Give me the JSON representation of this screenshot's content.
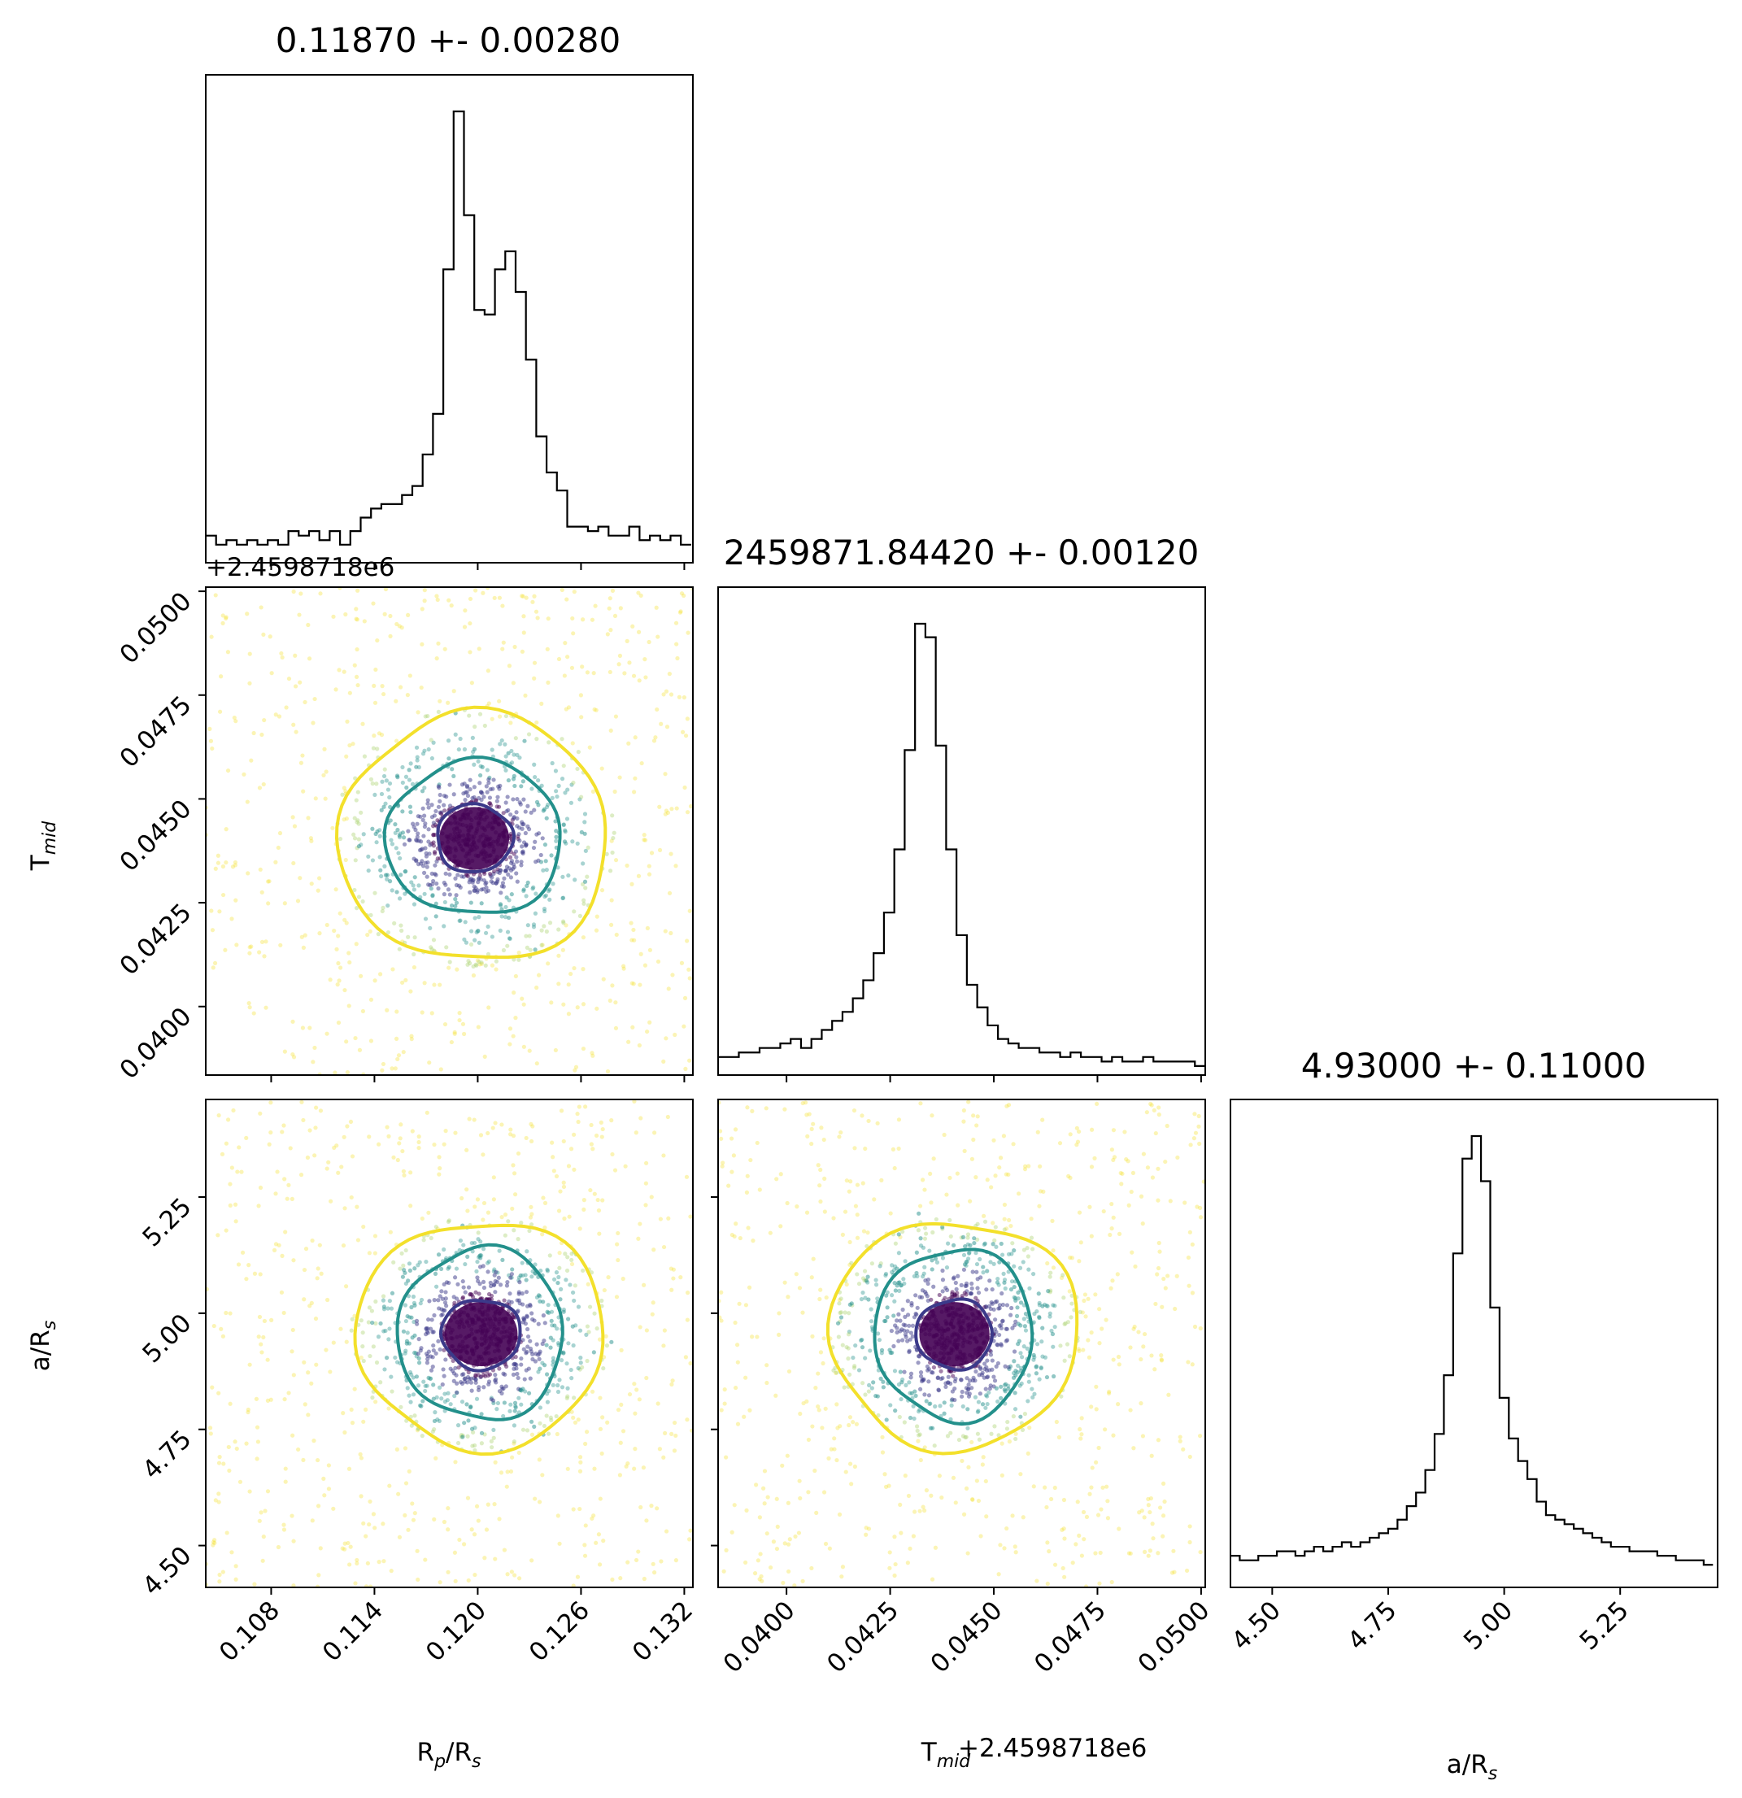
{
  "chart_data": [
    {
      "type": "histogram",
      "panel": "Rp/Rs marginal",
      "title": "0.11870 +- 0.00280",
      "x_range": [
        0.1042,
        0.1325
      ],
      "x_ticks": [
        "0.108",
        "0.114",
        "0.120",
        "0.126",
        "0.132"
      ],
      "bins_x": [
        0.1042,
        0.1048,
        0.1054,
        0.106,
        0.1066,
        0.1072,
        0.1078,
        0.1084,
        0.109,
        0.1096,
        0.1102,
        0.1108,
        0.1114,
        0.112,
        0.1126,
        0.1132,
        0.1138,
        0.1144,
        0.115,
        0.1156,
        0.1162,
        0.1168,
        0.1174,
        0.118,
        0.1186,
        0.1192,
        0.1198,
        0.1204,
        0.121,
        0.1216,
        0.1222,
        0.1228,
        0.1234,
        0.124,
        0.1246,
        0.1252,
        0.1258,
        0.1264,
        0.127,
        0.1276,
        0.1282,
        0.1288,
        0.1294,
        0.13,
        0.1306,
        0.1312,
        0.1318
      ],
      "counts": [
        0.06,
        0.04,
        0.05,
        0.04,
        0.05,
        0.04,
        0.05,
        0.04,
        0.07,
        0.06,
        0.07,
        0.05,
        0.07,
        0.04,
        0.07,
        0.1,
        0.12,
        0.13,
        0.13,
        0.15,
        0.17,
        0.24,
        0.33,
        0.65,
        1.0,
        0.77,
        0.56,
        0.55,
        0.65,
        0.69,
        0.6,
        0.45,
        0.28,
        0.2,
        0.16,
        0.08,
        0.08,
        0.07,
        0.08,
        0.06,
        0.06,
        0.08,
        0.05,
        0.06,
        0.05,
        0.06,
        0.04
      ]
    },
    {
      "type": "histogram",
      "panel": "Tmid marginal",
      "title": "2459871.84420 +- 0.00120",
      "x_range": [
        0.03835,
        0.0501
      ],
      "x_ticks": [
        "0.0400",
        "0.0425",
        "0.0450",
        "0.0475",
        "0.0500"
      ],
      "bins_x": [
        0.03835,
        0.0386,
        0.03885,
        0.0391,
        0.03935,
        0.0396,
        0.03985,
        0.0401,
        0.04035,
        0.0406,
        0.04085,
        0.0411,
        0.04135,
        0.0416,
        0.04185,
        0.0421,
        0.04235,
        0.0426,
        0.04285,
        0.0431,
        0.04335,
        0.0436,
        0.04385,
        0.0441,
        0.04435,
        0.0446,
        0.04485,
        0.0451,
        0.04535,
        0.0456,
        0.04585,
        0.0461,
        0.04635,
        0.0466,
        0.04685,
        0.0471,
        0.04735,
        0.0476,
        0.04785,
        0.0481,
        0.04835,
        0.0486,
        0.04885,
        0.0491,
        0.04935,
        0.0496,
        0.04985
      ],
      "counts": [
        0.04,
        0.04,
        0.05,
        0.05,
        0.06,
        0.06,
        0.07,
        0.08,
        0.06,
        0.08,
        0.1,
        0.12,
        0.14,
        0.17,
        0.21,
        0.27,
        0.36,
        0.5,
        0.72,
        1.0,
        0.97,
        0.73,
        0.5,
        0.31,
        0.2,
        0.15,
        0.11,
        0.08,
        0.07,
        0.06,
        0.06,
        0.05,
        0.05,
        0.04,
        0.05,
        0.04,
        0.04,
        0.03,
        0.04,
        0.03,
        0.03,
        0.04,
        0.03,
        0.03,
        0.03,
        0.03,
        0.02
      ]
    },
    {
      "type": "histogram",
      "panel": "a/Rs marginal",
      "title": "4.93000 +- 0.11000",
      "x_range": [
        4.41,
        5.46
      ],
      "x_ticks": [
        "4.50",
        "4.75",
        "5.00",
        "5.25"
      ],
      "bins_x": [
        4.41,
        4.43,
        4.45,
        4.47,
        4.49,
        4.51,
        4.53,
        4.55,
        4.57,
        4.59,
        4.61,
        4.63,
        4.65,
        4.67,
        4.69,
        4.71,
        4.73,
        4.75,
        4.77,
        4.79,
        4.81,
        4.83,
        4.85,
        4.87,
        4.89,
        4.91,
        4.93,
        4.95,
        4.97,
        4.99,
        5.01,
        5.03,
        5.05,
        5.07,
        5.09,
        5.11,
        5.13,
        5.15,
        5.17,
        5.19,
        5.21,
        5.23,
        5.25,
        5.27,
        5.29,
        5.31,
        5.33,
        5.35,
        5.37,
        5.39,
        5.41,
        5.43
      ],
      "counts": [
        0.07,
        0.06,
        0.06,
        0.07,
        0.07,
        0.08,
        0.08,
        0.07,
        0.08,
        0.09,
        0.08,
        0.09,
        0.1,
        0.09,
        0.1,
        0.11,
        0.12,
        0.13,
        0.15,
        0.18,
        0.21,
        0.26,
        0.34,
        0.47,
        0.74,
        0.95,
        1.0,
        0.9,
        0.62,
        0.42,
        0.33,
        0.28,
        0.24,
        0.19,
        0.16,
        0.15,
        0.14,
        0.13,
        0.12,
        0.11,
        0.1,
        0.09,
        0.09,
        0.08,
        0.08,
        0.08,
        0.07,
        0.07,
        0.06,
        0.06,
        0.06,
        0.05
      ]
    },
    {
      "type": "scatter",
      "panel": "Tmid vs Rp/Rs",
      "x_range": [
        0.1042,
        0.1325
      ],
      "y_range": [
        0.03835,
        0.0501
      ],
      "center": [
        0.1198,
        0.04405
      ],
      "contours": [
        {
          "level": "inner",
          "color": "#3b3a8a",
          "rx": 0.0022,
          "ry": 0.00082
        },
        {
          "level": "middle",
          "color": "#23908b",
          "rx": 0.0051,
          "ry": 0.00186
        },
        {
          "level": "outer",
          "color": "#f3e02b",
          "rx": 0.0078,
          "ry": 0.003
        }
      ]
    },
    {
      "type": "scatter",
      "panel": "a/Rs vs Rp/Rs",
      "x_range": [
        0.1042,
        0.1325
      ],
      "y_range": [
        4.41,
        5.46
      ],
      "center": [
        0.1202,
        4.955
      ],
      "contours": [
        {
          "level": "inner",
          "color": "#3b3a8a",
          "rx": 0.0023,
          "ry": 0.075
        },
        {
          "level": "middle",
          "color": "#23908b",
          "rx": 0.0048,
          "ry": 0.185
        },
        {
          "level": "outer",
          "color": "#f3e02b",
          "rx": 0.0072,
          "ry": 0.245
        }
      ]
    },
    {
      "type": "scatter",
      "panel": "a/Rs vs Tmid",
      "x_range": [
        0.03835,
        0.0501
      ],
      "y_range": [
        4.41,
        5.46
      ],
      "center": [
        0.04405,
        4.955
      ],
      "contours": [
        {
          "level": "inner",
          "color": "#3b3a8a",
          "rx": 0.00092,
          "ry": 0.075
        },
        {
          "level": "middle",
          "color": "#23908b",
          "rx": 0.0019,
          "ry": 0.185
        },
        {
          "level": "outer",
          "color": "#f3e02b",
          "rx": 0.003,
          "ry": 0.245
        }
      ]
    }
  ],
  "axes": {
    "y_ticks_tmid": [
      "0.0400",
      "0.0425",
      "0.0450",
      "0.0475",
      "0.0500"
    ],
    "y_ticks_ars": [
      "4.50",
      "4.75",
      "5.00",
      "5.25"
    ],
    "ylabel_tmid_main": "T",
    "ylabel_tmid_sub": "mid",
    "ylabel_ars_main": "a/R",
    "ylabel_ars_sub": "s",
    "xlabel_rp_main": "R",
    "xlabel_rp_sub1": "p",
    "xlabel_rp_mid": "/R",
    "xlabel_rp_sub2": "s",
    "xlabel_tmid_main": "T",
    "xlabel_tmid_sub": "mid",
    "xlabel_ars_main": "a/R",
    "xlabel_ars_sub": "s",
    "offset_label": "+2.4598718e6"
  },
  "colors": {
    "dark": "#440154",
    "inner": "#3b3a8a",
    "middle": "#23908b",
    "outer": "#f3e02b"
  }
}
